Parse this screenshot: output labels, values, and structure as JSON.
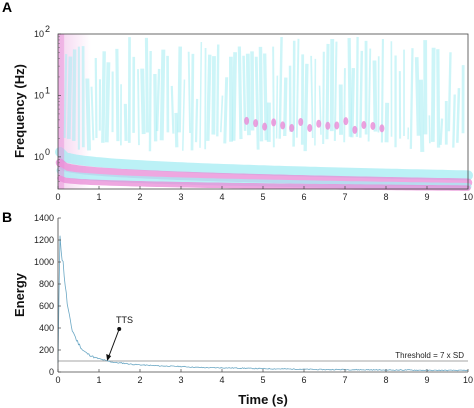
{
  "panels": {
    "a_letter": "A",
    "b_letter": "B"
  },
  "colors": {
    "magenta": "#e889d6",
    "cyan": "#a4ecf3",
    "energy_line": "#6aa7c4",
    "threshold_line": "#888888"
  },
  "chart_data": [
    {
      "type": "heatmap",
      "title": "",
      "xlabel": "",
      "ylabel": "Frequency (Hz)",
      "xlim": [
        0,
        10
      ],
      "ylim": [
        0.3,
        100
      ],
      "yscale": "log",
      "x_ticks": [
        "0",
        "1",
        "2",
        "3",
        "4",
        "5",
        "6",
        "7",
        "8",
        "9",
        "10"
      ],
      "y_ticks": [
        {
          "value": 1,
          "base": "10",
          "exp": "0"
        },
        {
          "value": 10,
          "base": "10",
          "exp": "1"
        },
        {
          "value": 100,
          "base": "10",
          "exp": "2"
        }
      ],
      "colormap": [
        "#e889d6",
        "#ffffff",
        "#a4ecf3"
      ],
      "description_bands": {
        "ridge_frequencies_hz_at_t_0_5": [
          1.2,
          0.8,
          0.6,
          0.45
        ],
        "ridge_decay_to_hz_at_t_10": [
          0.5,
          0.38,
          0.33,
          0.31
        ]
      },
      "grid": false
    },
    {
      "type": "line",
      "title": "",
      "xlabel": "Time (s)",
      "ylabel": "Energy",
      "xlim": [
        0,
        10
      ],
      "ylim": [
        0,
        1400
      ],
      "x_ticks": [
        "0",
        "1",
        "2",
        "3",
        "4",
        "5",
        "6",
        "7",
        "8",
        "9",
        "10"
      ],
      "y_ticks": [
        "0",
        "200",
        "400",
        "600",
        "800",
        "1000",
        "1200",
        "1400"
      ],
      "series": [
        {
          "x": [
            0,
            0.05,
            0.1,
            0.15,
            0.2,
            0.25,
            0.3,
            0.35,
            0.4,
            0.45,
            0.5,
            0.55,
            0.6,
            0.7,
            0.8,
            0.9,
            1.0,
            1.1,
            1.2,
            1.4,
            1.6,
            1.8,
            2.0,
            2.5,
            3.0,
            3.5,
            4.0,
            4.5,
            5.0,
            5.5,
            6.0,
            6.5,
            7.0,
            7.5,
            8.0,
            8.5,
            9.0,
            9.5,
            10.0
          ],
          "values": [
            80,
            1270,
            1050,
            900,
            700,
            560,
            450,
            380,
            340,
            290,
            260,
            230,
            200,
            170,
            150,
            130,
            120,
            110,
            100,
            85,
            80,
            70,
            65,
            55,
            50,
            40,
            38,
            35,
            30,
            28,
            25,
            22,
            22,
            20,
            18,
            18,
            15,
            15,
            14
          ]
        }
      ],
      "threshold": {
        "value": 100,
        "label": "Threshold = 7 x SD"
      },
      "annotation": {
        "label": "TTS",
        "x": 1.2,
        "y": 100
      },
      "grid": false
    }
  ]
}
